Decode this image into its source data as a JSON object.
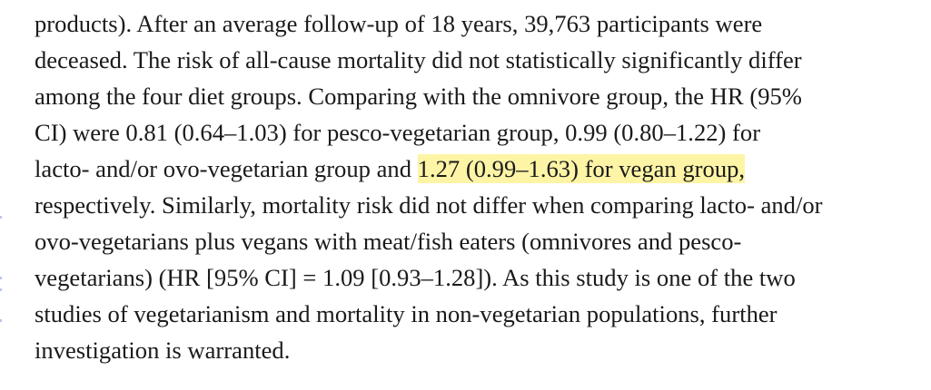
{
  "document": {
    "lines": [
      {
        "text": "products). After an average follow-up of 18 years, 39,763 participants were"
      },
      {
        "text": "deceased. The risk of all-cause mortality did not statistically significantly differ"
      },
      {
        "text": "among the four diet groups. Comparing with the omnivore group, the HR (95%"
      },
      {
        "text": "CI) were 0.81 (0.64–1.03) for pesco-vegetarian group, 0.99 (0.80–1.22) for"
      },
      {
        "before": "lacto- and/or ovo-vegetarian group and ",
        "highlight": "1.27 (0.99–1.63) for vegan group,"
      },
      {
        "text": "respectively. Similarly, mortality risk did not differ when comparing lacto- and/or"
      },
      {
        "text": "ovo-vegetarians plus vegans with meat/fish eaters (omnivores and pesco-"
      },
      {
        "text": "vegetarians) (HR [95% CI] = 1.09 [0.93–1.28]). As this study is one of the two"
      },
      {
        "text": "studies of vegetarianism and mortality in non-vegetarian populations, further"
      },
      {
        "text": "investigation is warranted."
      }
    ]
  },
  "colors": {
    "text": "#1a1a1a",
    "highlight": "#fdf4a6",
    "margin_marker": "#b8c6e6"
  }
}
